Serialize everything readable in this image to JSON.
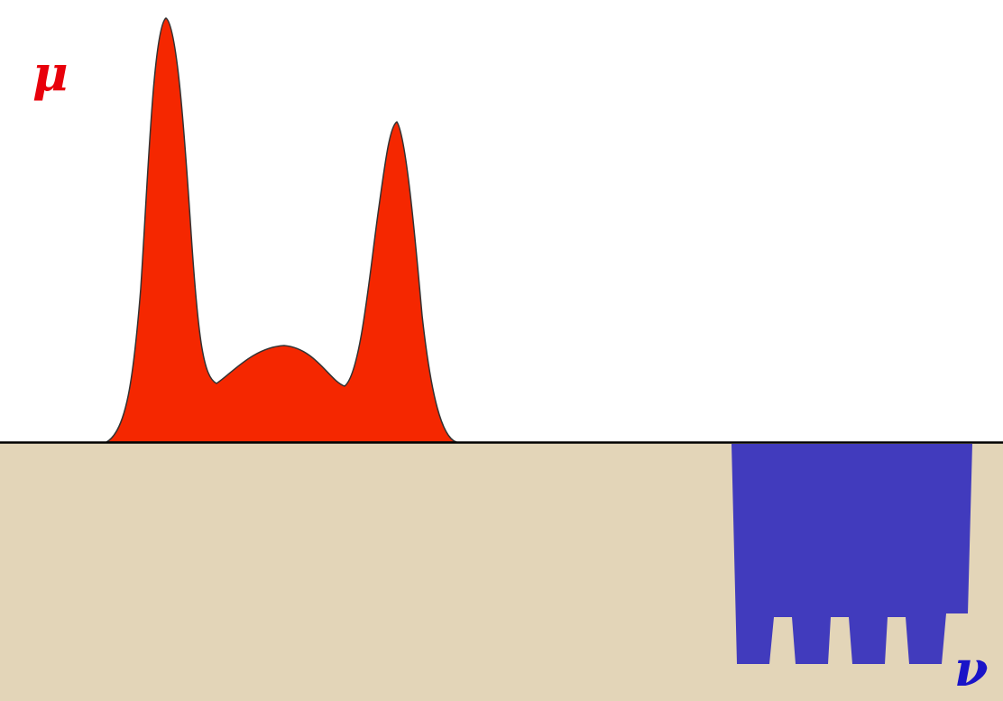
{
  "labels": {
    "source": "μ",
    "target": "ν"
  },
  "colors": {
    "background": "#ffffff",
    "ground": "#e3d5b8",
    "source_fill": "#f52700",
    "target_fill": "#413bbd",
    "outline": "#333333",
    "source_label": "#e8000b",
    "target_label": "#1a14c8"
  }
}
